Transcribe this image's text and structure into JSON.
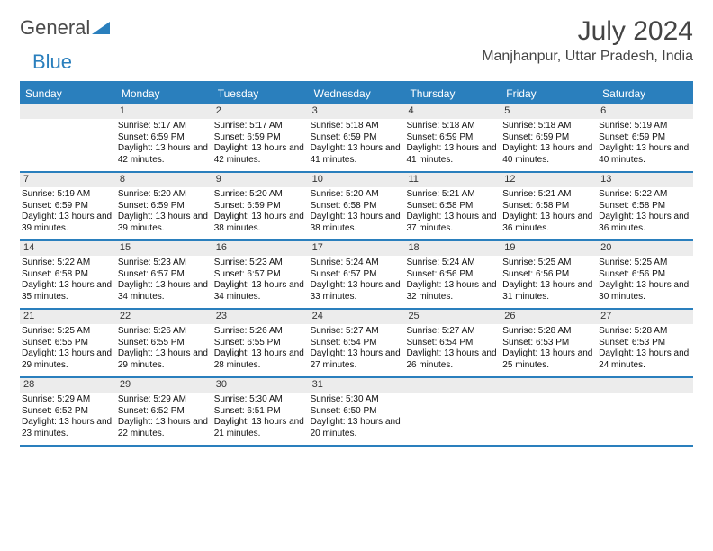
{
  "logo": {
    "text1": "General",
    "text2": "Blue"
  },
  "title": "July 2024",
  "location": "Manjhanpur, Uttar Pradesh, India",
  "colors": {
    "accent": "#2a7fbd",
    "dayband": "#ececec",
    "text": "#333333"
  },
  "weekdays": [
    "Sunday",
    "Monday",
    "Tuesday",
    "Wednesday",
    "Thursday",
    "Friday",
    "Saturday"
  ],
  "weeks": [
    [
      {
        "n": "",
        "sr": "",
        "ss": "",
        "dl": ""
      },
      {
        "n": "1",
        "sr": "Sunrise: 5:17 AM",
        "ss": "Sunset: 6:59 PM",
        "dl": "Daylight: 13 hours and 42 minutes."
      },
      {
        "n": "2",
        "sr": "Sunrise: 5:17 AM",
        "ss": "Sunset: 6:59 PM",
        "dl": "Daylight: 13 hours and 42 minutes."
      },
      {
        "n": "3",
        "sr": "Sunrise: 5:18 AM",
        "ss": "Sunset: 6:59 PM",
        "dl": "Daylight: 13 hours and 41 minutes."
      },
      {
        "n": "4",
        "sr": "Sunrise: 5:18 AM",
        "ss": "Sunset: 6:59 PM",
        "dl": "Daylight: 13 hours and 41 minutes."
      },
      {
        "n": "5",
        "sr": "Sunrise: 5:18 AM",
        "ss": "Sunset: 6:59 PM",
        "dl": "Daylight: 13 hours and 40 minutes."
      },
      {
        "n": "6",
        "sr": "Sunrise: 5:19 AM",
        "ss": "Sunset: 6:59 PM",
        "dl": "Daylight: 13 hours and 40 minutes."
      }
    ],
    [
      {
        "n": "7",
        "sr": "Sunrise: 5:19 AM",
        "ss": "Sunset: 6:59 PM",
        "dl": "Daylight: 13 hours and 39 minutes."
      },
      {
        "n": "8",
        "sr": "Sunrise: 5:20 AM",
        "ss": "Sunset: 6:59 PM",
        "dl": "Daylight: 13 hours and 39 minutes."
      },
      {
        "n": "9",
        "sr": "Sunrise: 5:20 AM",
        "ss": "Sunset: 6:59 PM",
        "dl": "Daylight: 13 hours and 38 minutes."
      },
      {
        "n": "10",
        "sr": "Sunrise: 5:20 AM",
        "ss": "Sunset: 6:58 PM",
        "dl": "Daylight: 13 hours and 38 minutes."
      },
      {
        "n": "11",
        "sr": "Sunrise: 5:21 AM",
        "ss": "Sunset: 6:58 PM",
        "dl": "Daylight: 13 hours and 37 minutes."
      },
      {
        "n": "12",
        "sr": "Sunrise: 5:21 AM",
        "ss": "Sunset: 6:58 PM",
        "dl": "Daylight: 13 hours and 36 minutes."
      },
      {
        "n": "13",
        "sr": "Sunrise: 5:22 AM",
        "ss": "Sunset: 6:58 PM",
        "dl": "Daylight: 13 hours and 36 minutes."
      }
    ],
    [
      {
        "n": "14",
        "sr": "Sunrise: 5:22 AM",
        "ss": "Sunset: 6:58 PM",
        "dl": "Daylight: 13 hours and 35 minutes."
      },
      {
        "n": "15",
        "sr": "Sunrise: 5:23 AM",
        "ss": "Sunset: 6:57 PM",
        "dl": "Daylight: 13 hours and 34 minutes."
      },
      {
        "n": "16",
        "sr": "Sunrise: 5:23 AM",
        "ss": "Sunset: 6:57 PM",
        "dl": "Daylight: 13 hours and 34 minutes."
      },
      {
        "n": "17",
        "sr": "Sunrise: 5:24 AM",
        "ss": "Sunset: 6:57 PM",
        "dl": "Daylight: 13 hours and 33 minutes."
      },
      {
        "n": "18",
        "sr": "Sunrise: 5:24 AM",
        "ss": "Sunset: 6:56 PM",
        "dl": "Daylight: 13 hours and 32 minutes."
      },
      {
        "n": "19",
        "sr": "Sunrise: 5:25 AM",
        "ss": "Sunset: 6:56 PM",
        "dl": "Daylight: 13 hours and 31 minutes."
      },
      {
        "n": "20",
        "sr": "Sunrise: 5:25 AM",
        "ss": "Sunset: 6:56 PM",
        "dl": "Daylight: 13 hours and 30 minutes."
      }
    ],
    [
      {
        "n": "21",
        "sr": "Sunrise: 5:25 AM",
        "ss": "Sunset: 6:55 PM",
        "dl": "Daylight: 13 hours and 29 minutes."
      },
      {
        "n": "22",
        "sr": "Sunrise: 5:26 AM",
        "ss": "Sunset: 6:55 PM",
        "dl": "Daylight: 13 hours and 29 minutes."
      },
      {
        "n": "23",
        "sr": "Sunrise: 5:26 AM",
        "ss": "Sunset: 6:55 PM",
        "dl": "Daylight: 13 hours and 28 minutes."
      },
      {
        "n": "24",
        "sr": "Sunrise: 5:27 AM",
        "ss": "Sunset: 6:54 PM",
        "dl": "Daylight: 13 hours and 27 minutes."
      },
      {
        "n": "25",
        "sr": "Sunrise: 5:27 AM",
        "ss": "Sunset: 6:54 PM",
        "dl": "Daylight: 13 hours and 26 minutes."
      },
      {
        "n": "26",
        "sr": "Sunrise: 5:28 AM",
        "ss": "Sunset: 6:53 PM",
        "dl": "Daylight: 13 hours and 25 minutes."
      },
      {
        "n": "27",
        "sr": "Sunrise: 5:28 AM",
        "ss": "Sunset: 6:53 PM",
        "dl": "Daylight: 13 hours and 24 minutes."
      }
    ],
    [
      {
        "n": "28",
        "sr": "Sunrise: 5:29 AM",
        "ss": "Sunset: 6:52 PM",
        "dl": "Daylight: 13 hours and 23 minutes."
      },
      {
        "n": "29",
        "sr": "Sunrise: 5:29 AM",
        "ss": "Sunset: 6:52 PM",
        "dl": "Daylight: 13 hours and 22 minutes."
      },
      {
        "n": "30",
        "sr": "Sunrise: 5:30 AM",
        "ss": "Sunset: 6:51 PM",
        "dl": "Daylight: 13 hours and 21 minutes."
      },
      {
        "n": "31",
        "sr": "Sunrise: 5:30 AM",
        "ss": "Sunset: 6:50 PM",
        "dl": "Daylight: 13 hours and 20 minutes."
      },
      {
        "n": "",
        "sr": "",
        "ss": "",
        "dl": ""
      },
      {
        "n": "",
        "sr": "",
        "ss": "",
        "dl": ""
      },
      {
        "n": "",
        "sr": "",
        "ss": "",
        "dl": ""
      }
    ]
  ]
}
